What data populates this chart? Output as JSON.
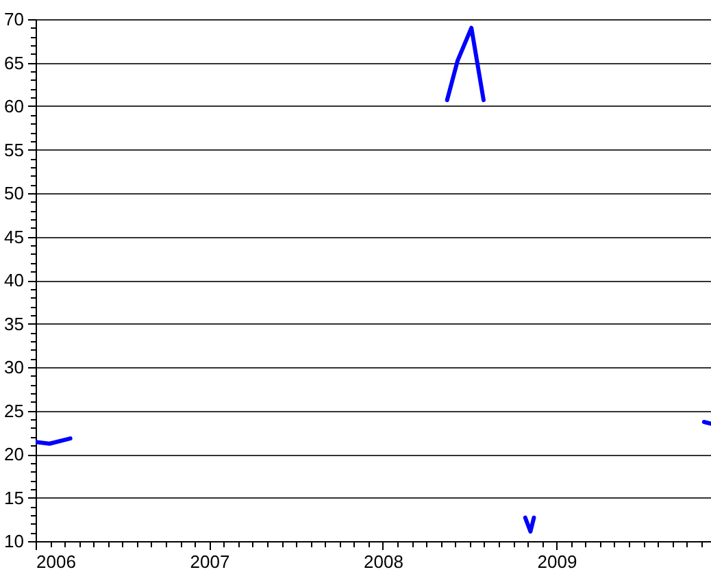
{
  "chart_data": {
    "type": "line",
    "x": [
      2006.0,
      2006.08,
      2006.2,
      2006.3,
      2008.37,
      2008.43,
      2008.51,
      2008.58,
      2008.7,
      2008.82,
      2008.85,
      2008.87,
      2009.0,
      2009.85,
      2009.89
    ],
    "series": [
      {
        "color": "#0000ff",
        "values": [
          21.4,
          21.2,
          21.8,
          null,
          60.7,
          65.2,
          69,
          60.7,
          null,
          12.7,
          11.1,
          12.7,
          null,
          23.7,
          23.5
        ]
      }
    ],
    "xlim": [
      2006,
      2009.89
    ],
    "xticks": [
      2006,
      {
        "value": 2006.0833,
        "label": null
      },
      {
        "value": 2006.1667,
        "label": null
      },
      {
        "value": 2006.25,
        "label": null
      },
      {
        "value": 2006.3333,
        "label": null
      },
      {
        "value": 2006.4167,
        "label": null
      },
      {
        "value": 2006.5,
        "label": null
      },
      {
        "value": 2006.5833,
        "label": null
      },
      {
        "value": 2006.6667,
        "label": null
      },
      {
        "value": 2006.75,
        "label": null
      },
      {
        "value": 2006.8333,
        "label": null
      },
      {
        "value": 2006.9167,
        "label": null
      },
      2007,
      {
        "value": 2007.0833,
        "label": null
      },
      {
        "value": 2007.1667,
        "label": null
      },
      {
        "value": 2007.25,
        "label": null
      },
      {
        "value": 2007.3333,
        "label": null
      },
      {
        "value": 2007.4167,
        "label": null
      },
      {
        "value": 2007.5,
        "label": null
      },
      {
        "value": 2007.5833,
        "label": null
      },
      {
        "value": 2007.6667,
        "label": null
      },
      {
        "value": 2007.75,
        "label": null
      },
      {
        "value": 2007.8333,
        "label": null
      },
      {
        "value": 2007.9167,
        "label": null
      },
      2008,
      {
        "value": 2008.0833,
        "label": null
      },
      {
        "value": 2008.1667,
        "label": null
      },
      {
        "value": 2008.25,
        "label": null
      },
      {
        "value": 2008.3333,
        "label": null
      },
      {
        "value": 2008.4167,
        "label": null
      },
      {
        "value": 2008.5,
        "label": null
      },
      {
        "value": 2008.5833,
        "label": null
      },
      {
        "value": 2008.6667,
        "label": null
      },
      {
        "value": 2008.75,
        "label": null
      },
      {
        "value": 2008.8333,
        "label": null
      },
      {
        "value": 2008.9167,
        "label": null
      },
      2009,
      {
        "value": 2009.0833,
        "label": null
      },
      {
        "value": 2009.1667,
        "label": null
      },
      {
        "value": 2009.25,
        "label": null
      },
      {
        "value": 2009.3333,
        "label": null
      },
      {
        "value": 2009.4167,
        "label": null
      },
      {
        "value": 2009.5,
        "label": null
      },
      {
        "value": 2009.5833,
        "label": null
      },
      {
        "value": 2009.6667,
        "label": null
      },
      {
        "value": 2009.75,
        "label": null
      },
      {
        "value": 2009.8333,
        "label": null
      }
    ],
    "ylim": [
      10,
      70
    ],
    "yticks": [
      10,
      {
        "value": 11,
        "label": null
      },
      {
        "value": 12,
        "label": null
      },
      {
        "value": 13,
        "label": null
      },
      {
        "value": 14,
        "label": null
      },
      15,
      {
        "value": 16,
        "label": null
      },
      {
        "value": 17,
        "label": null
      },
      {
        "value": 18,
        "label": null
      },
      {
        "value": 19,
        "label": null
      },
      20,
      {
        "value": 21,
        "label": null
      },
      {
        "value": 22,
        "label": null
      },
      {
        "value": 23,
        "label": null
      },
      {
        "value": 24,
        "label": null
      },
      25,
      {
        "value": 26,
        "label": null
      },
      {
        "value": 27,
        "label": null
      },
      {
        "value": 28,
        "label": null
      },
      {
        "value": 29,
        "label": null
      },
      30,
      {
        "value": 31,
        "label": null
      },
      {
        "value": 32,
        "label": null
      },
      {
        "value": 33,
        "label": null
      },
      {
        "value": 34,
        "label": null
      },
      35,
      {
        "value": 36,
        "label": null
      },
      {
        "value": 37,
        "label": null
      },
      {
        "value": 38,
        "label": null
      },
      {
        "value": 39,
        "label": null
      },
      40,
      {
        "value": 41,
        "label": null
      },
      {
        "value": 42,
        "label": null
      },
      {
        "value": 43,
        "label": null
      },
      {
        "value": 44,
        "label": null
      },
      45,
      {
        "value": 46,
        "label": null
      },
      {
        "value": 47,
        "label": null
      },
      {
        "value": 48,
        "label": null
      },
      {
        "value": 49,
        "label": null
      },
      50,
      {
        "value": 51,
        "label": null
      },
      {
        "value": 52,
        "label": null
      },
      {
        "value": 53,
        "label": null
      },
      {
        "value": 54,
        "label": null
      },
      55,
      {
        "value": 56,
        "label": null
      },
      {
        "value": 57,
        "label": null
      },
      {
        "value": 58,
        "label": null
      },
      {
        "value": 59,
        "label": null
      },
      60,
      {
        "value": 61,
        "label": null
      },
      {
        "value": 62,
        "label": null
      },
      {
        "value": 63,
        "label": null
      },
      {
        "value": 64,
        "label": null
      },
      65,
      {
        "value": 66,
        "label": null
      },
      {
        "value": 67,
        "label": null
      },
      {
        "value": 68,
        "label": null
      },
      {
        "value": 69,
        "label": null
      },
      70
    ],
    "grid": "y",
    "line_style": "solid"
  }
}
